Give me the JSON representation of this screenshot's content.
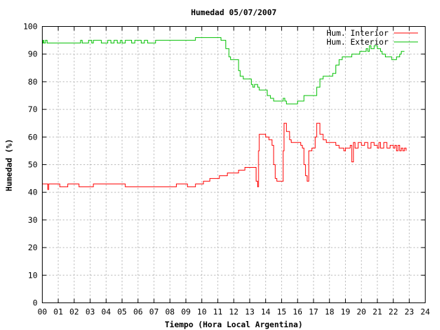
{
  "chart_data": {
    "type": "line",
    "title": "Humedad 05/07/2007",
    "xlabel": "Tiempo (Hora Local Argentina)",
    "ylabel": "Humedad (%)",
    "xlim": [
      0,
      24
    ],
    "ylim": [
      0,
      100
    ],
    "x_ticks": [
      "00",
      "01",
      "02",
      "03",
      "04",
      "05",
      "06",
      "07",
      "08",
      "09",
      "10",
      "11",
      "12",
      "13",
      "14",
      "15",
      "16",
      "17",
      "18",
      "19",
      "20",
      "21",
      "22",
      "23",
      "24"
    ],
    "y_ticks": [
      0,
      10,
      20,
      30,
      40,
      50,
      60,
      70,
      80,
      90,
      100
    ],
    "grid": true,
    "legend_position": "top-right",
    "series": [
      {
        "name": "Hum. Interior",
        "color": "#ff0000",
        "points": [
          [
            0,
            43
          ],
          [
            0.3,
            43
          ],
          [
            0.35,
            41
          ],
          [
            0.4,
            43
          ],
          [
            1.0,
            43
          ],
          [
            1.1,
            42
          ],
          [
            1.5,
            42
          ],
          [
            1.6,
            43
          ],
          [
            2.2,
            43
          ],
          [
            2.3,
            42
          ],
          [
            3.1,
            42
          ],
          [
            3.2,
            43
          ],
          [
            5.1,
            43
          ],
          [
            5.2,
            42
          ],
          [
            8.3,
            42
          ],
          [
            8.4,
            43
          ],
          [
            9.0,
            43
          ],
          [
            9.1,
            42
          ],
          [
            9.5,
            42
          ],
          [
            9.6,
            43
          ],
          [
            10.0,
            43
          ],
          [
            10.1,
            44
          ],
          [
            10.4,
            44
          ],
          [
            10.5,
            45
          ],
          [
            11.0,
            45
          ],
          [
            11.1,
            46
          ],
          [
            11.5,
            46
          ],
          [
            11.6,
            47
          ],
          [
            12.2,
            47
          ],
          [
            12.3,
            48
          ],
          [
            12.6,
            48
          ],
          [
            12.7,
            49
          ],
          [
            13.0,
            49
          ],
          [
            13.3,
            49
          ],
          [
            13.4,
            44
          ],
          [
            13.5,
            42
          ],
          [
            13.55,
            55
          ],
          [
            13.6,
            61
          ],
          [
            14.0,
            60
          ],
          [
            14.2,
            59
          ],
          [
            14.4,
            57
          ],
          [
            14.5,
            50
          ],
          [
            14.6,
            45
          ],
          [
            14.7,
            44
          ],
          [
            15.0,
            44
          ],
          [
            15.1,
            55
          ],
          [
            15.15,
            65
          ],
          [
            15.3,
            62
          ],
          [
            15.5,
            59
          ],
          [
            15.6,
            58
          ],
          [
            16.0,
            58
          ],
          [
            16.2,
            57
          ],
          [
            16.3,
            56
          ],
          [
            16.4,
            50
          ],
          [
            16.5,
            46
          ],
          [
            16.6,
            44
          ],
          [
            16.7,
            55
          ],
          [
            16.9,
            56
          ],
          [
            17.0,
            56
          ],
          [
            17.1,
            60
          ],
          [
            17.2,
            65
          ],
          [
            17.4,
            61
          ],
          [
            17.6,
            59
          ],
          [
            17.8,
            58
          ],
          [
            18.2,
            58
          ],
          [
            18.4,
            57
          ],
          [
            18.6,
            56
          ],
          [
            18.8,
            56
          ],
          [
            18.9,
            55
          ],
          [
            19.0,
            56
          ],
          [
            19.2,
            56
          ],
          [
            19.3,
            57
          ],
          [
            19.4,
            51
          ],
          [
            19.5,
            58
          ],
          [
            19.6,
            56
          ],
          [
            19.8,
            58
          ],
          [
            20.0,
            57
          ],
          [
            20.2,
            58
          ],
          [
            20.4,
            56
          ],
          [
            20.6,
            58
          ],
          [
            20.8,
            57
          ],
          [
            21.0,
            56
          ],
          [
            21.1,
            58
          ],
          [
            21.2,
            56
          ],
          [
            21.4,
            58
          ],
          [
            21.6,
            56
          ],
          [
            21.8,
            57
          ],
          [
            22.0,
            56
          ],
          [
            22.1,
            57
          ],
          [
            22.2,
            55
          ],
          [
            22.3,
            57
          ],
          [
            22.4,
            55
          ],
          [
            22.5,
            56
          ],
          [
            22.6,
            55
          ],
          [
            22.7,
            56
          ],
          [
            22.8,
            55
          ]
        ]
      },
      {
        "name": "Hum. Exterior",
        "color": "#00c000",
        "points": [
          [
            0,
            94
          ],
          [
            0.05,
            95
          ],
          [
            0.1,
            94
          ],
          [
            0.2,
            95
          ],
          [
            0.3,
            94
          ],
          [
            1.0,
            94
          ],
          [
            2.3,
            94
          ],
          [
            2.4,
            95
          ],
          [
            2.5,
            94
          ],
          [
            2.8,
            94
          ],
          [
            2.9,
            95
          ],
          [
            3.1,
            94
          ],
          [
            3.2,
            95
          ],
          [
            3.5,
            95
          ],
          [
            3.7,
            94
          ],
          [
            4.0,
            94
          ],
          [
            4.1,
            95
          ],
          [
            4.3,
            94
          ],
          [
            4.5,
            95
          ],
          [
            4.7,
            94
          ],
          [
            4.9,
            95
          ],
          [
            5.0,
            94
          ],
          [
            5.2,
            95
          ],
          [
            5.5,
            95
          ],
          [
            5.6,
            94
          ],
          [
            5.8,
            95
          ],
          [
            6.0,
            95
          ],
          [
            6.2,
            94
          ],
          [
            6.4,
            95
          ],
          [
            6.6,
            94
          ],
          [
            7.0,
            94
          ],
          [
            7.1,
            95
          ],
          [
            9.5,
            95
          ],
          [
            9.6,
            96
          ],
          [
            11.0,
            96
          ],
          [
            11.2,
            95
          ],
          [
            11.5,
            92
          ],
          [
            11.7,
            89
          ],
          [
            11.8,
            88
          ],
          [
            12.1,
            88
          ],
          [
            12.3,
            84
          ],
          [
            12.4,
            82
          ],
          [
            12.6,
            81
          ],
          [
            13.0,
            81
          ],
          [
            13.1,
            79
          ],
          [
            13.2,
            78
          ],
          [
            13.3,
            79
          ],
          [
            13.5,
            78
          ],
          [
            13.6,
            77
          ],
          [
            14.0,
            77
          ],
          [
            14.1,
            75
          ],
          [
            14.3,
            74
          ],
          [
            14.5,
            73
          ],
          [
            15.0,
            73
          ],
          [
            15.1,
            74
          ],
          [
            15.2,
            73
          ],
          [
            15.3,
            72
          ],
          [
            15.9,
            72
          ],
          [
            16.0,
            73
          ],
          [
            16.3,
            73
          ],
          [
            16.4,
            75
          ],
          [
            17.0,
            75
          ],
          [
            17.2,
            78
          ],
          [
            17.4,
            81
          ],
          [
            17.6,
            82
          ],
          [
            17.8,
            82
          ],
          [
            18.0,
            82
          ],
          [
            18.2,
            83
          ],
          [
            18.4,
            86
          ],
          [
            18.6,
            88
          ],
          [
            18.8,
            89
          ],
          [
            19.2,
            89
          ],
          [
            19.4,
            90
          ],
          [
            19.8,
            90
          ],
          [
            19.9,
            91
          ],
          [
            20.2,
            91
          ],
          [
            20.3,
            92
          ],
          [
            20.4,
            91
          ],
          [
            20.5,
            93
          ],
          [
            20.6,
            92
          ],
          [
            20.8,
            93
          ],
          [
            21.0,
            92
          ],
          [
            21.2,
            91
          ],
          [
            21.3,
            90
          ],
          [
            21.5,
            89
          ],
          [
            21.7,
            89
          ],
          [
            21.9,
            88
          ],
          [
            22.1,
            88
          ],
          [
            22.2,
            89
          ],
          [
            22.4,
            90
          ],
          [
            22.5,
            91
          ],
          [
            22.7,
            91
          ]
        ]
      }
    ]
  }
}
